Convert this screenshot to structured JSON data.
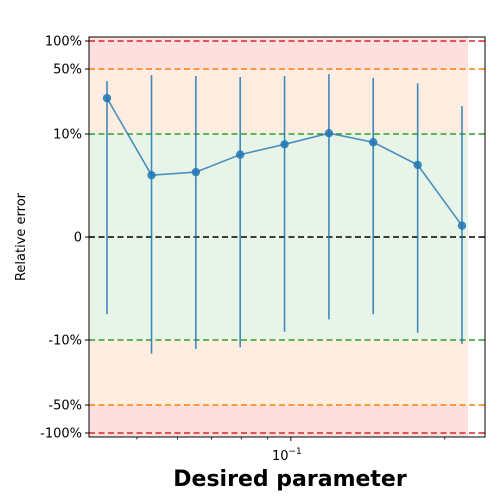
{
  "chart_data": {
    "type": "line",
    "xlabel": "Desired parameter",
    "ylabel": "Relative error",
    "x_scale": "log",
    "x_ticks": [
      {
        "value": 0.1,
        "base": "10",
        "exp": "−1"
      }
    ],
    "y_scale": "symlog",
    "y_ticks": [
      "-100%",
      "-50%",
      "-10%",
      "0",
      "10%",
      "50%",
      "100%"
    ],
    "points": [
      {
        "x": 0.0437,
        "y": 0.243,
        "err_low": -0.075,
        "err_high": 0.37
      },
      {
        "x": 0.0534,
        "y": 0.06,
        "err_low": -0.14,
        "err_high": 0.43
      },
      {
        "x": 0.0652,
        "y": 0.063,
        "err_low": -0.125,
        "err_high": 0.42
      },
      {
        "x": 0.0796,
        "y": 0.08,
        "err_low": -0.12,
        "err_high": 0.41
      },
      {
        "x": 0.0972,
        "y": 0.09,
        "err_low": -0.092,
        "err_high": 0.42
      },
      {
        "x": 0.1187,
        "y": 0.102,
        "err_low": -0.08,
        "err_high": 0.44
      },
      {
        "x": 0.1449,
        "y": 0.092,
        "err_low": -0.075,
        "err_high": 0.4
      },
      {
        "x": 0.177,
        "y": 0.07,
        "err_low": -0.093,
        "err_high": 0.35
      },
      {
        "x": 0.2161,
        "y": 0.011,
        "err_low": -0.11,
        "err_high": 0.2
      }
    ],
    "reference_lines": [
      {
        "y": 1.0,
        "color": "#d62728",
        "style": "dashed"
      },
      {
        "y": 0.5,
        "color": "#ff7f0e",
        "style": "dashed"
      },
      {
        "y": 0.1,
        "color": "#2ca02c",
        "style": "dashed"
      },
      {
        "y": 0,
        "color": "#000000",
        "style": "dashed"
      },
      {
        "y": -0.1,
        "color": "#2ca02c",
        "style": "dashed"
      },
      {
        "y": -0.5,
        "color": "#ff7f0e",
        "style": "dashed"
      },
      {
        "y": -1.0,
        "color": "#d62728",
        "style": "dashed"
      }
    ],
    "bands": [
      {
        "from": 0.5,
        "to": 1.0,
        "color": "#fde0dd"
      },
      {
        "from": 0.1,
        "to": 0.5,
        "color": "#feede0"
      },
      {
        "from": -0.1,
        "to": 0.1,
        "color": "#e8f4e8"
      },
      {
        "from": -0.5,
        "to": -0.1,
        "color": "#feede0"
      },
      {
        "from": -1.0,
        "to": -0.5,
        "color": "#fde0dd"
      }
    ],
    "series_color": "#1f77b4",
    "grid": false
  }
}
